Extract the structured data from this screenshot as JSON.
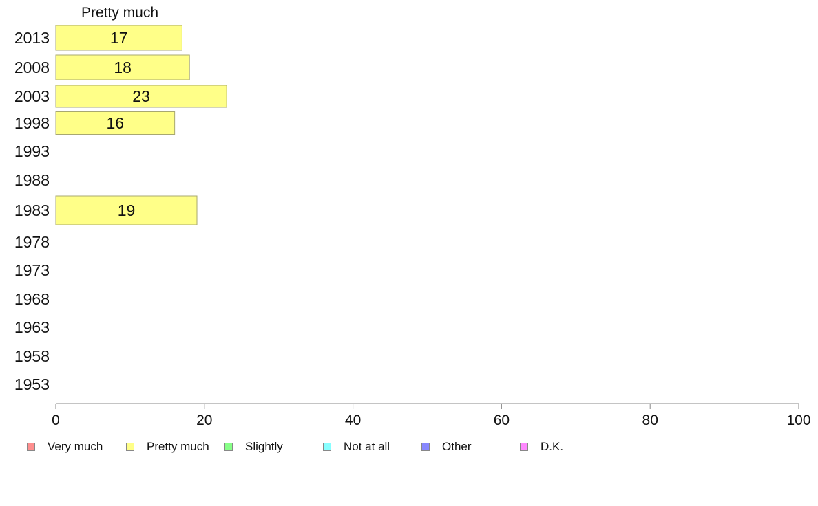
{
  "chart_data": {
    "type": "bar",
    "orientation": "horizontal",
    "series_label": "Pretty much",
    "categories": [
      "2013",
      "2008",
      "2003",
      "1998",
      "1993",
      "1988",
      "1983",
      "1978",
      "1973",
      "1968",
      "1963",
      "1958",
      "1953"
    ],
    "values": [
      17,
      18,
      23,
      16,
      null,
      null,
      19,
      null,
      null,
      null,
      null,
      null,
      null
    ],
    "xlim": [
      0,
      100
    ],
    "xticks": [
      "0",
      "20",
      "40",
      "60",
      "80",
      "100"
    ],
    "bar_color": "#ffff88",
    "legend_position": "bottom",
    "legend": [
      {
        "label": "Very much",
        "color": "#ff8f8f"
      },
      {
        "label": "Pretty much",
        "color": "#ffff88"
      },
      {
        "label": "Slightly",
        "color": "#88ff88"
      },
      {
        "label": "Not at all",
        "color": "#88ffff"
      },
      {
        "label": "Other",
        "color": "#8888ff"
      },
      {
        "label": "D.K.",
        "color": "#ff88ff"
      }
    ]
  }
}
